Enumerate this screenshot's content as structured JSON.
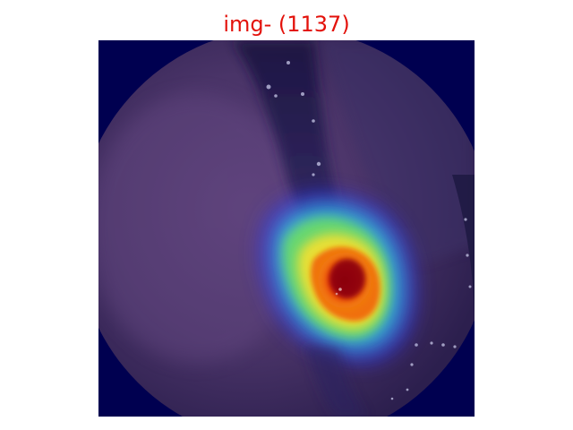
{
  "title": {
    "text": "img- (1137)",
    "color": "#e3120b"
  },
  "image": {
    "subject": "endoscopic-view-with-heatmap-overlay",
    "background_color": "#000050",
    "heatmap_colormap": "jet"
  }
}
